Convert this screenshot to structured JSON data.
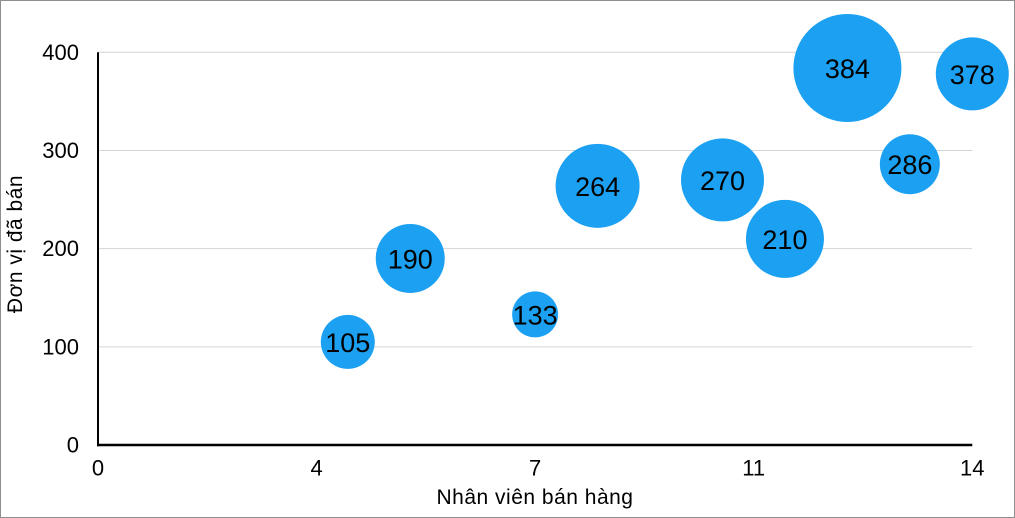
{
  "frame": {
    "background": "#ffffff",
    "border_color": "#8e8e8e"
  },
  "chart_data": {
    "type": "scatter",
    "variant": "bubble",
    "title": "",
    "xlabel": "Nhân viên bán hàng",
    "ylabel": "Đơn vị đã bán",
    "xlim": [
      0,
      14
    ],
    "ylim": [
      0,
      400
    ],
    "x_ticks": [
      {
        "value": 0,
        "label": "0"
      },
      {
        "value": 3.5,
        "label": "4"
      },
      {
        "value": 7,
        "label": "7"
      },
      {
        "value": 10.5,
        "label": "11"
      },
      {
        "value": 14,
        "label": "14"
      }
    ],
    "y_ticks": [
      {
        "value": 0,
        "label": "0"
      },
      {
        "value": 100,
        "label": "100"
      },
      {
        "value": 200,
        "label": "200"
      },
      {
        "value": 300,
        "label": "300"
      },
      {
        "value": 400,
        "label": "400"
      }
    ],
    "grid": {
      "horizontal": true,
      "vertical": false
    },
    "legend": "none",
    "points": [
      {
        "x": 4,
        "y": 105,
        "label": "105",
        "radius_px": 27
      },
      {
        "x": 5,
        "y": 190,
        "label": "190",
        "radius_px": 34.5
      },
      {
        "x": 7,
        "y": 133,
        "label": "133",
        "radius_px": 23
      },
      {
        "x": 8,
        "y": 264,
        "label": "264",
        "radius_px": 42
      },
      {
        "x": 10,
        "y": 270,
        "label": "270",
        "radius_px": 41.5
      },
      {
        "x": 11,
        "y": 210,
        "label": "210",
        "radius_px": 39
      },
      {
        "x": 12,
        "y": 384,
        "label": "384",
        "radius_px": 54
      },
      {
        "x": 13,
        "y": 286,
        "label": "286",
        "radius_px": 30
      },
      {
        "x": 14,
        "y": 378,
        "label": "378",
        "radius_px": 36.5
      }
    ],
    "colors": {
      "bubble_fill": "#1BA0F2",
      "bubble_label": "#000000",
      "gridline": "#d4d4d4",
      "axis_line": "#000000",
      "tick_label": "#000000",
      "axis_title": "#000000"
    }
  }
}
